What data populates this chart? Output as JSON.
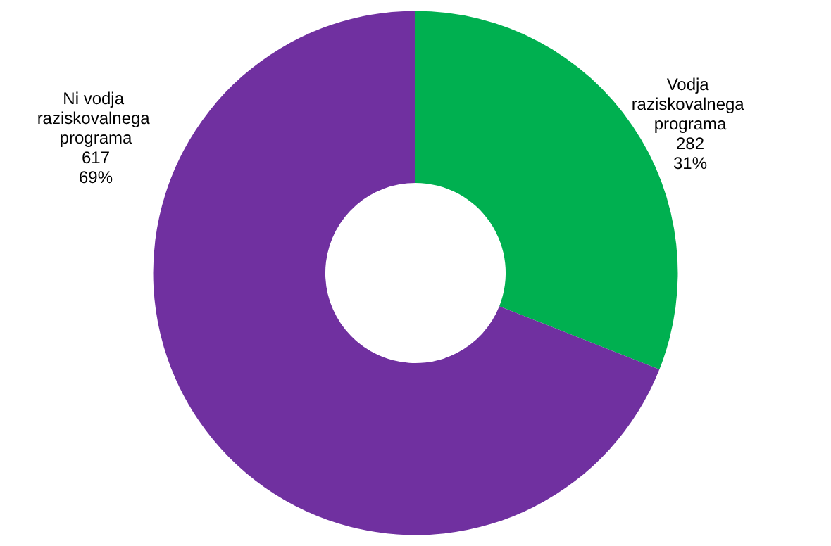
{
  "chart_data": {
    "type": "donut",
    "categories": [
      "Vodja raziskovalnega programa",
      "Ni vodja raziskovalnega programa"
    ],
    "values": [
      31,
      69
    ],
    "colors": [
      "#00b050",
      "#7030a0"
    ],
    "value_labels": [
      "282\n31%",
      "617\n69%"
    ],
    "legend": false
  }
}
